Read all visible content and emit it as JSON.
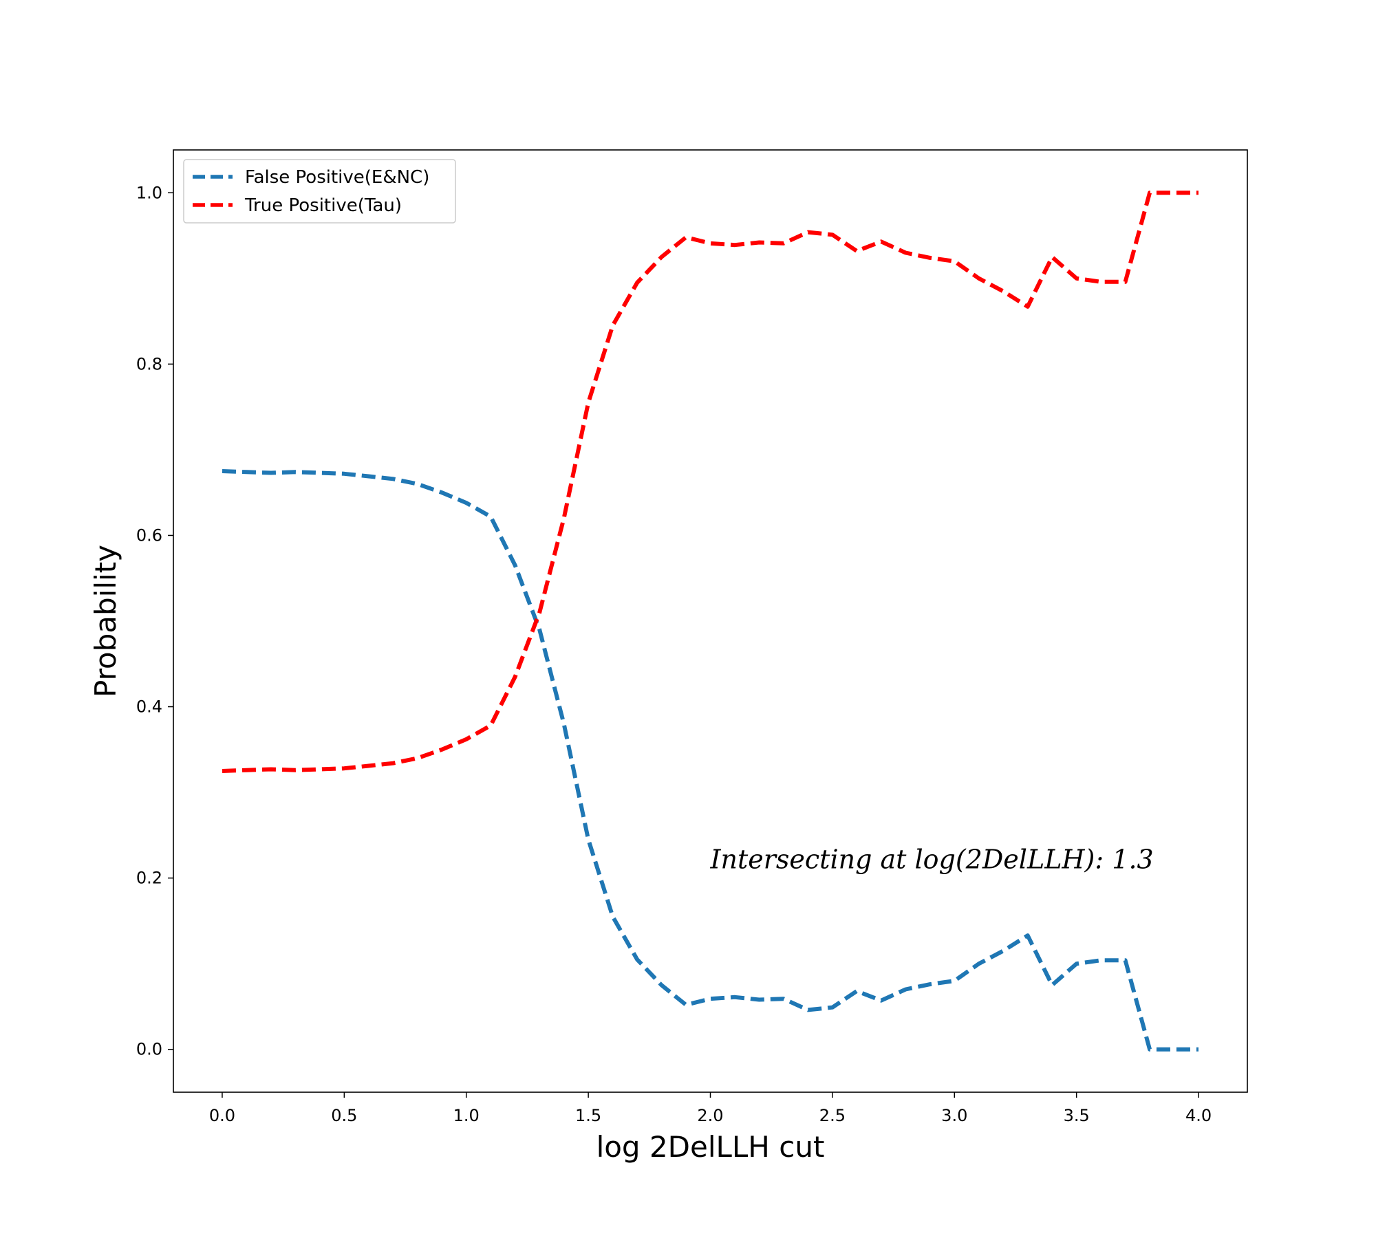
{
  "chart_data": {
    "type": "line",
    "title": "",
    "xlabel": "log 2DelLLH cut",
    "ylabel": "Probability",
    "xlim": [
      -0.2,
      4.2
    ],
    "ylim": [
      -0.05,
      1.05
    ],
    "xticks": [
      0.0,
      0.5,
      1.0,
      1.5,
      2.0,
      2.5,
      3.0,
      3.5,
      4.0
    ],
    "xtick_labels": [
      "0.0",
      "0.5",
      "1.0",
      "1.5",
      "2.0",
      "2.5",
      "3.0",
      "3.5",
      "4.0"
    ],
    "yticks": [
      0.0,
      0.2,
      0.4,
      0.6,
      0.8,
      1.0
    ],
    "ytick_labels": [
      "0.0",
      "0.2",
      "0.4",
      "0.6",
      "0.8",
      "1.0"
    ],
    "grid": false,
    "legend_position": "top-left",
    "x": [
      0.0,
      0.1,
      0.2,
      0.3,
      0.4,
      0.5,
      0.6,
      0.7,
      0.8,
      0.9,
      1.0,
      1.1,
      1.2,
      1.3,
      1.4,
      1.5,
      1.6,
      1.7,
      1.8,
      1.9,
      2.0,
      2.1,
      2.2,
      2.3,
      2.4,
      2.5,
      2.6,
      2.7,
      2.8,
      2.9,
      3.0,
      3.1,
      3.2,
      3.3,
      3.4,
      3.5,
      3.6,
      3.7,
      3.8,
      3.9,
      4.0
    ],
    "series": [
      {
        "name": "False Positive(E&NC)",
        "color": "#1f77b4",
        "values": [
          0.675,
          0.674,
          0.673,
          0.674,
          0.673,
          0.672,
          0.669,
          0.666,
          0.66,
          0.65,
          0.638,
          0.622,
          0.565,
          0.49,
          0.38,
          0.245,
          0.155,
          0.105,
          0.075,
          0.052,
          0.059,
          0.061,
          0.058,
          0.059,
          0.046,
          0.049,
          0.068,
          0.057,
          0.07,
          0.076,
          0.08,
          0.1,
          0.115,
          0.133,
          0.075,
          0.1,
          0.104,
          0.104,
          0.0,
          0.0,
          0.0
        ]
      },
      {
        "name": "True Positive(Tau)",
        "color": "#ff0000",
        "values": [
          0.325,
          0.326,
          0.327,
          0.326,
          0.327,
          0.328,
          0.331,
          0.334,
          0.34,
          0.35,
          0.362,
          0.378,
          0.435,
          0.51,
          0.62,
          0.755,
          0.845,
          0.895,
          0.925,
          0.948,
          0.941,
          0.939,
          0.942,
          0.941,
          0.954,
          0.951,
          0.932,
          0.943,
          0.93,
          0.924,
          0.92,
          0.9,
          0.885,
          0.867,
          0.925,
          0.9,
          0.896,
          0.896,
          1.0,
          1.0,
          1.0
        ]
      }
    ],
    "annotations": [
      {
        "text": "Intersecting at log(2DelLLH): 1.3",
        "x": 2.0,
        "y": 0.2
      }
    ]
  }
}
